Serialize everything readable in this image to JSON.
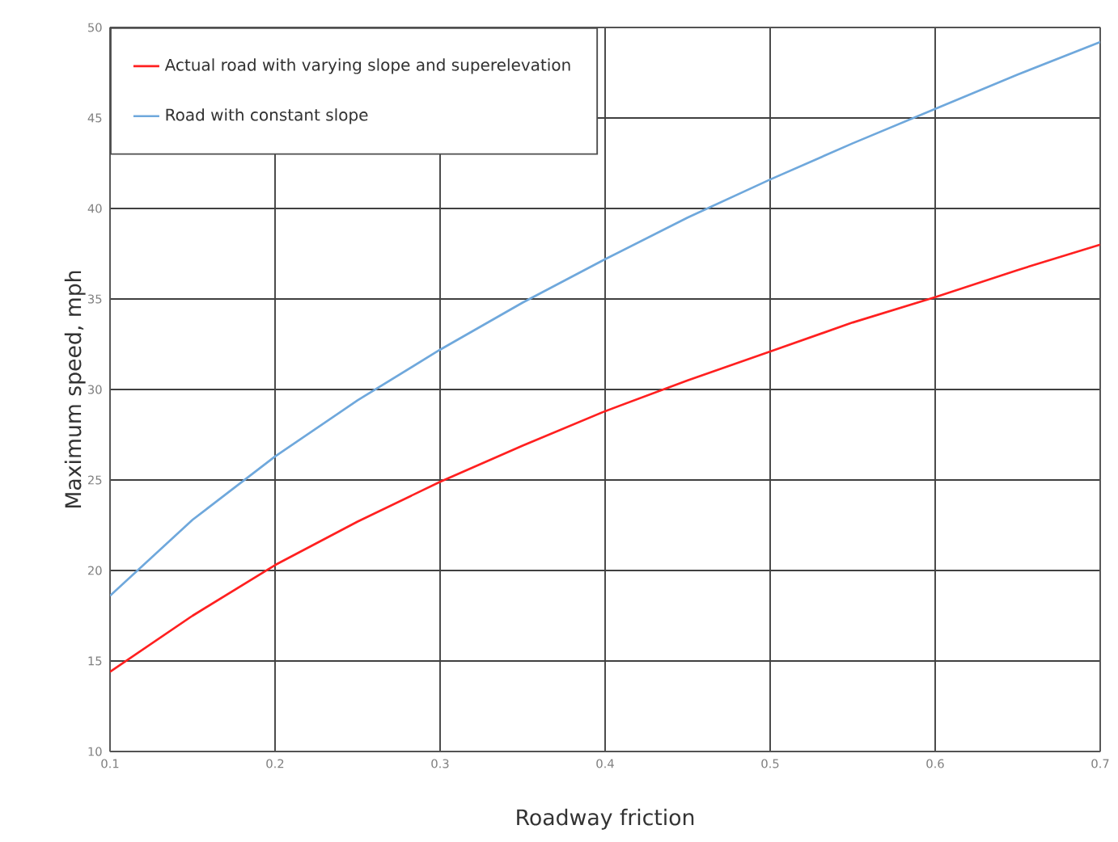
{
  "chart_data": {
    "type": "line",
    "xlabel": "Roadway friction",
    "ylabel": "Maximum speed, mph",
    "x": [
      0.1,
      0.15,
      0.2,
      0.25,
      0.3,
      0.35,
      0.4,
      0.45,
      0.5,
      0.55,
      0.6,
      0.65,
      0.7
    ],
    "series": [
      {
        "name": "Actual road with varying slope and superelevation",
        "color": "#ff2020",
        "values": [
          14.4,
          17.5,
          20.3,
          22.7,
          24.9,
          26.9,
          28.8,
          30.5,
          32.1,
          33.7,
          35.1,
          36.6,
          38.0
        ]
      },
      {
        "name": "Road with constant slope",
        "color": "#6fa8dc",
        "values": [
          18.6,
          22.8,
          26.3,
          29.4,
          32.2,
          34.8,
          37.2,
          39.5,
          41.6,
          43.6,
          45.5,
          47.4,
          49.2
        ]
      }
    ],
    "xlim": [
      0.1,
      0.7
    ],
    "xticks": [
      0.1,
      0.2,
      0.3,
      0.4,
      0.5,
      0.6,
      0.7
    ],
    "ylim": [
      10,
      50
    ],
    "yticks": [
      10,
      15,
      20,
      25,
      30,
      35,
      40,
      45,
      50
    ],
    "grid": true,
    "legend": "top left",
    "marker": "none",
    "line_style": "solid"
  }
}
